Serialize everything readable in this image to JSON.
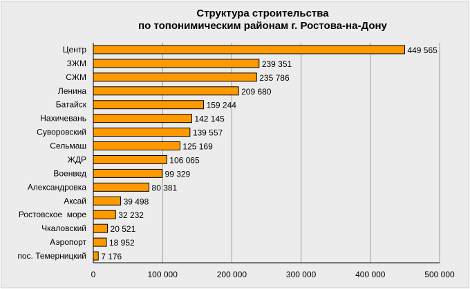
{
  "chart_data": {
    "type": "bar",
    "orientation": "horizontal",
    "title": "Структура строительства по топонимическим районам г. Ростова-на-Дону",
    "title_lines": [
      "Структура строительства",
      "по топонимическим районам г. Ростова-на-Дону"
    ],
    "categories": [
      "Центр",
      "ЗЖМ",
      "СЖМ",
      "Ленина",
      "Батайск",
      "Нахичевань",
      "Суворовский",
      "Сельмаш",
      "ЖДР",
      "Военвед",
      "Александровка",
      "Аксай",
      "Ростовское  море",
      "Чкаловский",
      "Аэропорт",
      "пос. Темерницкий"
    ],
    "values": [
      449565,
      239351,
      235786,
      209680,
      159244,
      142145,
      139557,
      125169,
      106065,
      99329,
      80381,
      39498,
      32232,
      20521,
      18952,
      7176
    ],
    "value_labels": [
      "449 565",
      "239 351",
      "235 786",
      "209 680",
      "159 244",
      "142 145",
      "139 557",
      "125 169",
      "106 065",
      "99 329",
      "80 381",
      "39 498",
      "32 232",
      "20 521",
      "18 952",
      "7 176"
    ],
    "xlim": [
      0,
      500000
    ],
    "x_ticks": [
      0,
      100000,
      200000,
      300000,
      400000,
      500000
    ],
    "x_tick_labels": [
      "0",
      "100 000",
      "200 000",
      "300 000",
      "400 000",
      "500 000"
    ],
    "xlabel": "",
    "ylabel": "",
    "grid": "vertical",
    "legend": "none",
    "colors": {
      "bar": "#ff9900",
      "bar_stroke": "#000000",
      "grid": "#9a9a9a",
      "plot_background": "#ececec"
    }
  }
}
